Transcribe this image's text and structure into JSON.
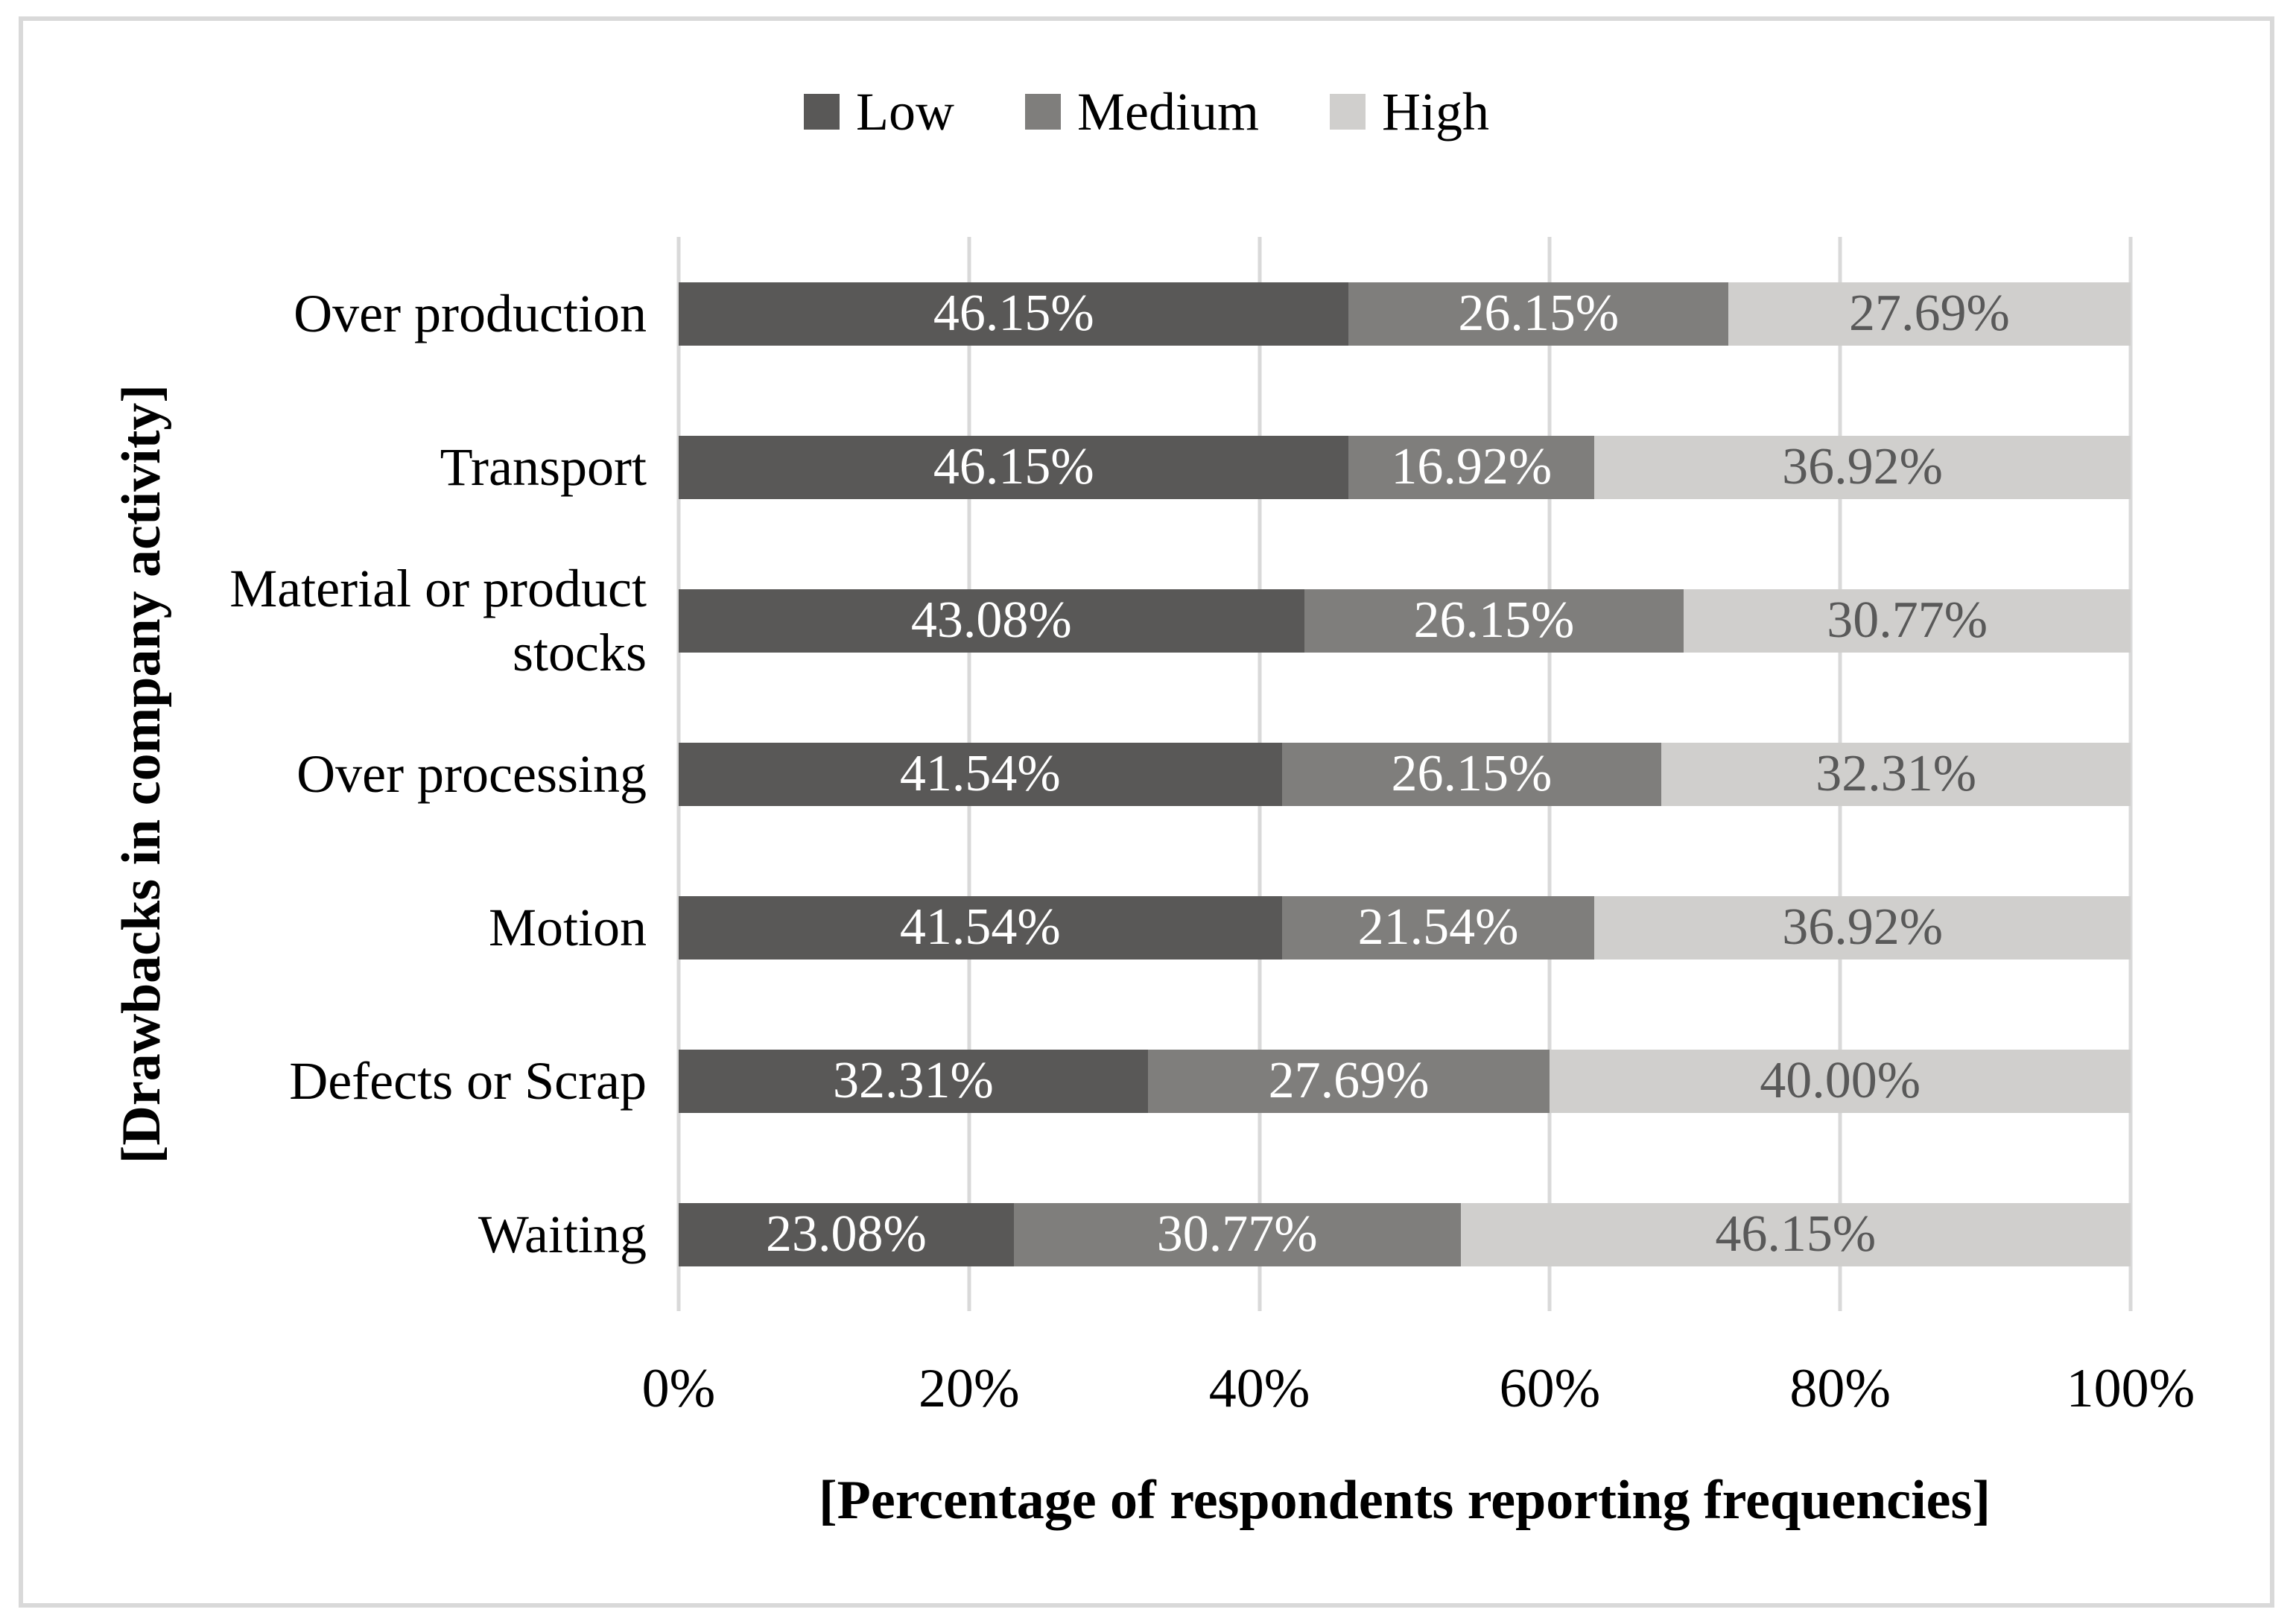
{
  "figure": {
    "frame_border_color": "#d9d9d9",
    "background_color": "#ffffff",
    "gridline_color": "#d9d9d9"
  },
  "chart_data": {
    "type": "bar",
    "orientation": "horizontal",
    "stacked": true,
    "title": "",
    "xlabel": "[Percentage of respondents reporting frequencies]",
    "ylabel": "[Drawbacks in company activity]",
    "xlim": [
      0,
      100
    ],
    "grid": true,
    "legend_position": "top",
    "x_tick_values": [
      0,
      20,
      40,
      60,
      80,
      100
    ],
    "x_ticks": [
      "0%",
      "20%",
      "40%",
      "60%",
      "80%",
      "100%"
    ],
    "categories": [
      "Over production",
      "Transport",
      "Material or product stocks",
      "Over processing",
      "Motion",
      "Defects or Scrap",
      "Waiting"
    ],
    "series": [
      {
        "name": "Low",
        "color": "#595857",
        "label_color": "#ffffff",
        "values": [
          46.15,
          46.15,
          43.08,
          41.54,
          41.54,
          32.31,
          23.08
        ],
        "labels": [
          "46.15%",
          "46.15%",
          "43.08%",
          "41.54%",
          "41.54%",
          "32.31%",
          "23.08%"
        ]
      },
      {
        "name": "Medium",
        "color": "#7f7e7c",
        "label_color": "#ffffff",
        "values": [
          26.15,
          16.92,
          26.15,
          26.15,
          21.54,
          27.69,
          30.77
        ],
        "labels": [
          "26.15%",
          "16.92%",
          "26.15%",
          "26.15%",
          "21.54%",
          "27.69%",
          "30.77%"
        ]
      },
      {
        "name": "High",
        "color": "#d0cfcd",
        "label_color": "#595959",
        "values": [
          27.69,
          36.92,
          30.77,
          32.31,
          36.92,
          40.0,
          46.15
        ],
        "labels": [
          "27.69%",
          "36.92%",
          "30.77%",
          "32.31%",
          "36.92%",
          "40.00%",
          "46.15%"
        ]
      }
    ]
  }
}
